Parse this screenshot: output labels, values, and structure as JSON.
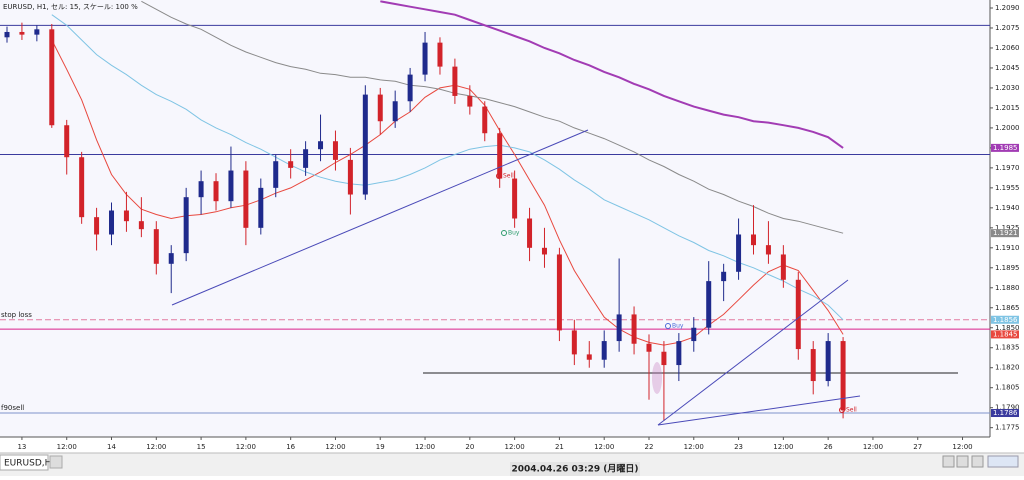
{
  "chart_data": {
    "type": "candlestick",
    "title": "EURUSD, H1, セル: 15, スケール: 100 %",
    "up_color": "#1f2a8c",
    "down_color": "#d2232a",
    "categories": [
      null,
      "13",
      null,
      null,
      "12:00",
      null,
      null,
      "14",
      null,
      null,
      "12:00",
      null,
      null,
      "15",
      null,
      null,
      "12:00",
      null,
      null,
      "16",
      null,
      null,
      "12:00",
      null,
      null,
      "19",
      null,
      null,
      "12:00",
      null,
      null,
      "20",
      null,
      null,
      "12:00",
      null,
      null,
      "21",
      null,
      null,
      "12:00",
      null,
      null,
      "22",
      null,
      null,
      "12:00",
      null,
      null,
      "23",
      null,
      null,
      "12:00",
      null,
      null,
      "26",
      null,
      null,
      "12:00",
      null,
      null,
      "27",
      null,
      null,
      "12:00",
      null
    ],
    "open": [
      1.2068,
      1.2072,
      1.207,
      1.2074,
      1.2002,
      1.1978,
      1.1933,
      1.192,
      1.1938,
      1.193,
      1.1924,
      1.1898,
      1.1906,
      1.1948,
      1.196,
      1.1945,
      1.1968,
      1.1925,
      1.1955,
      1.1975,
      1.197,
      1.1984,
      1.199,
      1.1976,
      1.195,
      1.2025,
      1.2005,
      1.202,
      1.204,
      1.2064,
      1.2046,
      1.2024,
      1.2016,
      1.1996,
      1.1962,
      1.1932,
      1.191,
      1.1905,
      1.1848,
      1.183,
      1.1826,
      1.184,
      1.186,
      1.1838,
      1.1832,
      1.1822,
      1.184,
      1.185,
      1.1885,
      1.1892,
      1.192,
      1.1912,
      1.1905,
      1.1886,
      1.1834,
      1.181,
      1.184,
      null,
      null,
      null,
      null,
      null,
      null,
      null,
      null,
      null
    ],
    "high": [
      1.2076,
      1.2079,
      1.2077,
      1.2078,
      1.2006,
      1.1982,
      1.194,
      1.1944,
      1.1952,
      1.1948,
      1.193,
      1.1912,
      1.1955,
      1.1968,
      1.1966,
      1.1986,
      1.1975,
      1.1962,
      1.198,
      1.1984,
      1.199,
      1.201,
      1.1998,
      1.1985,
      1.2032,
      1.203,
      1.2028,
      1.2045,
      1.2072,
      1.2068,
      1.2052,
      1.2032,
      1.202,
      1.2,
      1.1968,
      1.194,
      1.1925,
      1.191,
      1.1856,
      1.184,
      1.1848,
      1.1902,
      1.1866,
      1.1845,
      1.184,
      1.1846,
      1.1858,
      1.19,
      1.1898,
      1.1932,
      1.1942,
      1.193,
      1.1912,
      1.1892,
      1.184,
      1.1846,
      1.1843,
      null,
      null,
      null,
      null,
      null,
      null,
      null,
      null,
      null
    ],
    "low": [
      1.2064,
      1.2066,
      1.2065,
      1.2,
      1.1965,
      1.1928,
      1.1908,
      1.1912,
      1.1922,
      1.1918,
      1.189,
      1.1876,
      1.19,
      1.1935,
      1.1938,
      1.194,
      1.1912,
      1.192,
      1.1948,
      1.1962,
      1.1964,
      1.1975,
      1.1968,
      1.1935,
      1.1946,
      1.1995,
      1.2,
      1.2012,
      1.2035,
      1.204,
      1.2018,
      1.201,
      1.199,
      1.1955,
      1.1925,
      1.19,
      1.1895,
      1.184,
      1.1822,
      1.182,
      1.182,
      1.1832,
      1.183,
      1.1796,
      1.178,
      1.181,
      1.1832,
      1.1845,
      1.187,
      1.1886,
      1.1905,
      1.1898,
      1.188,
      1.1826,
      1.18,
      1.1806,
      1.1782,
      null,
      null,
      null,
      null,
      null,
      null,
      null,
      null,
      null
    ],
    "close": [
      1.2072,
      1.207,
      1.2074,
      1.2002,
      1.1978,
      1.1933,
      1.192,
      1.1938,
      1.193,
      1.1924,
      1.1898,
      1.1906,
      1.1948,
      1.196,
      1.1945,
      1.1968,
      1.1925,
      1.1955,
      1.1975,
      1.197,
      1.1984,
      1.199,
      1.1976,
      1.195,
      1.2025,
      1.2005,
      1.202,
      1.204,
      1.2064,
      1.2046,
      1.2024,
      1.2016,
      1.1996,
      1.1962,
      1.1932,
      1.191,
      1.1905,
      1.1848,
      1.183,
      1.1826,
      1.184,
      1.186,
      1.1838,
      1.1832,
      1.1822,
      1.184,
      1.185,
      1.1885,
      1.1892,
      1.192,
      1.1912,
      1.1905,
      1.1886,
      1.1834,
      1.181,
      1.184,
      1.1788,
      null,
      null,
      null,
      null,
      null,
      null,
      null,
      null,
      null
    ],
    "series": [
      {
        "color": "#e8483e",
        "values": [
          null,
          null,
          null,
          1.2066,
          1.2044,
          1.2021,
          1.1991,
          1.1965,
          1.195,
          1.1939,
          1.1935,
          1.1932,
          1.1934,
          1.1935,
          1.1937,
          1.194,
          1.1942,
          1.1946,
          1.1951,
          1.1955,
          1.1961,
          1.1967,
          1.1974,
          1.198,
          1.1987,
          1.1995,
          1.2005,
          1.2012,
          1.2023,
          1.203,
          1.2032,
          1.2029,
          1.2017,
          1.1998,
          1.198,
          1.1961,
          1.1942,
          1.1916,
          1.1893,
          1.1875,
          1.1858,
          1.1849,
          1.1843,
          1.1839,
          1.1837,
          1.1839,
          1.1843,
          1.1852,
          1.186,
          1.1871,
          1.1882,
          1.1892,
          1.1897,
          1.1893,
          1.1878,
          1.1863,
          1.1845,
          null,
          null,
          null,
          null,
          null,
          null,
          null,
          null,
          null
        ]
      },
      {
        "color": "#7fc4e4",
        "values": [
          null,
          null,
          null,
          1.2085,
          1.2077,
          1.2066,
          1.2055,
          1.2047,
          1.204,
          1.2032,
          1.2025,
          1.202,
          1.2014,
          1.2006,
          1.2,
          1.1995,
          1.1989,
          1.1984,
          1.1978,
          1.1972,
          1.1967,
          1.1963,
          1.196,
          1.1958,
          1.1957,
          1.1959,
          1.1961,
          1.1965,
          1.197,
          1.1976,
          1.198,
          1.1984,
          1.1986,
          1.1987,
          1.1985,
          1.1982,
          1.1976,
          1.1969,
          1.1961,
          1.1954,
          1.1946,
          1.1941,
          1.1936,
          1.1931,
          1.1925,
          1.1919,
          1.1914,
          1.1908,
          1.1904,
          1.1899,
          1.1895,
          1.189,
          1.1885,
          1.1879,
          1.1874,
          1.1867,
          1.1856,
          null,
          null,
          null,
          null,
          null,
          null,
          null,
          null,
          null
        ]
      },
      {
        "color": "#8a8a8a",
        "values": [
          null,
          null,
          null,
          null,
          null,
          null,
          null,
          null,
          null,
          1.2095,
          1.2089,
          1.2083,
          1.2078,
          1.2074,
          1.2068,
          1.2062,
          1.2057,
          1.2053,
          1.2049,
          1.2046,
          1.2044,
          1.2041,
          1.204,
          1.2038,
          1.2038,
          1.2036,
          1.2035,
          1.2032,
          1.2031,
          1.2029,
          1.2026,
          1.2024,
          1.2022,
          1.2019,
          1.2016,
          1.2012,
          1.2008,
          1.2005,
          1.2,
          1.1996,
          1.1992,
          1.1987,
          1.1982,
          1.1976,
          1.1971,
          1.1965,
          1.196,
          1.1954,
          1.195,
          1.1945,
          1.1941,
          1.1936,
          1.1932,
          1.193,
          1.1927,
          1.1924,
          1.1921,
          null,
          null,
          null,
          null,
          null,
          null,
          null,
          null,
          null
        ]
      },
      {
        "color": "#a23cb4",
        "values": [
          null,
          null,
          null,
          null,
          null,
          null,
          null,
          null,
          null,
          null,
          null,
          null,
          null,
          null,
          null,
          null,
          null,
          null,
          null,
          null,
          null,
          null,
          null,
          null,
          null,
          1.2095,
          1.2093,
          1.2091,
          1.2089,
          1.2087,
          1.2085,
          1.2081,
          1.2077,
          1.2073,
          1.2069,
          1.2065,
          1.206,
          1.2056,
          1.2051,
          1.2047,
          1.2042,
          1.2038,
          1.2033,
          1.2029,
          1.2024,
          1.202,
          1.2016,
          1.2013,
          1.201,
          1.2008,
          1.2005,
          1.2004,
          1.2002,
          1.2,
          1.1997,
          1.1993,
          1.1985,
          null,
          null,
          null,
          null,
          null,
          null,
          null,
          null,
          null
        ]
      }
    ],
    "levels": [
      {
        "value": 1.2077,
        "color": "#3b3b9e"
      },
      {
        "value": 1.198,
        "color": "#3b3b9e"
      },
      {
        "value": 1.1856,
        "color": "#e27aa0",
        "dashed": true,
        "label": "stop loss"
      },
      {
        "value": 1.1849,
        "color": "#d8208a"
      },
      {
        "value": 1.1816,
        "color": "#222222"
      },
      {
        "value": 1.1786,
        "color": "#7f93cc",
        "label": "f90sell"
      }
    ],
    "annotations": [
      "Sell",
      "Buy",
      "Buy",
      "Sell"
    ],
    "ylim": [
      1.1768,
      1.2096
    ],
    "yticks": [
      {
        "value": 1.209,
        "label": "1.2090"
      },
      1.2075,
      {
        "value": 1.206,
        "label": "1.2060"
      },
      1.2045,
      {
        "value": 1.203,
        "label": "1.2030"
      },
      1.2015,
      {
        "value": 1.2,
        "label": "1.2000"
      },
      1.1985,
      {
        "value": 1.197,
        "label": "1.1970"
      },
      1.1955,
      {
        "value": 1.194,
        "label": "1.1940"
      },
      1.1925,
      {
        "value": 1.191,
        "label": "1.1910"
      },
      1.1895,
      {
        "value": 1.188,
        "label": "1.1880"
      },
      1.1865,
      {
        "value": 1.185,
        "label": "1.1850"
      },
      1.1835,
      {
        "value": 1.182,
        "label": "1.1820"
      },
      1.1805,
      {
        "value": 1.179,
        "label": "1.1790"
      },
      1.1775
    ]
  },
  "status_bar": {
    "tab": "EURUSD,H1",
    "time": "2004.04.26 03:29 (月曜日)"
  }
}
